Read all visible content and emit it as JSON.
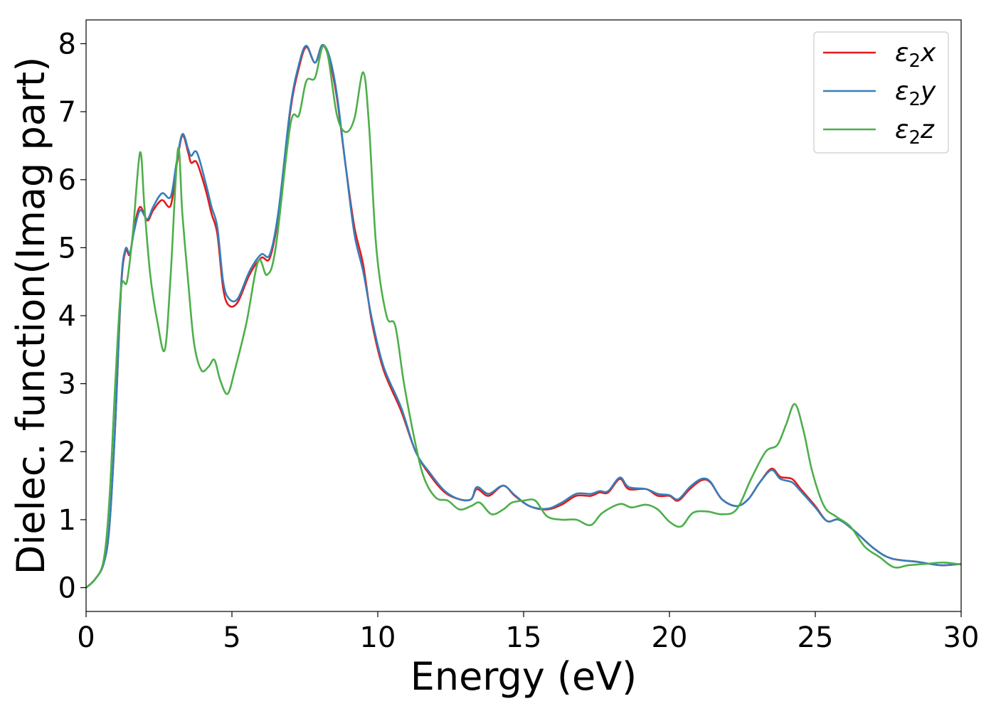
{
  "chart_data": {
    "type": "line",
    "title": "",
    "xlabel": "Energy (eV)",
    "ylabel": "Dielec. function(Imag part)",
    "xlim": [
      0,
      30
    ],
    "ylim": [
      -0.35,
      8.35
    ],
    "xticks": [
      0,
      5,
      10,
      15,
      20,
      25,
      30
    ],
    "yticks": [
      0,
      1,
      2,
      3,
      4,
      5,
      6,
      7,
      8
    ],
    "grid": false,
    "legend_position": "top-right",
    "series": [
      {
        "name": "ε₂x",
        "legend_base": "ε",
        "legend_sub": "2",
        "legend_var": "x",
        "color": "#e41a1c",
        "points": [
          [
            0,
            0
          ],
          [
            0.3,
            0.12
          ],
          [
            0.6,
            0.35
          ],
          [
            0.8,
            0.9
          ],
          [
            1.0,
            2.4
          ],
          [
            1.2,
            4.4
          ],
          [
            1.35,
            4.95
          ],
          [
            1.5,
            4.9
          ],
          [
            1.65,
            5.3
          ],
          [
            1.85,
            5.6
          ],
          [
            2.1,
            5.4
          ],
          [
            2.3,
            5.55
          ],
          [
            2.6,
            5.7
          ],
          [
            2.9,
            5.62
          ],
          [
            3.1,
            6.2
          ],
          [
            3.3,
            6.65
          ],
          [
            3.5,
            6.4
          ],
          [
            3.6,
            6.25
          ],
          [
            3.8,
            6.25
          ],
          [
            4.1,
            5.85
          ],
          [
            4.3,
            5.5
          ],
          [
            4.5,
            5.2
          ],
          [
            4.7,
            4.4
          ],
          [
            4.9,
            4.15
          ],
          [
            5.2,
            4.2
          ],
          [
            5.6,
            4.6
          ],
          [
            6.0,
            4.85
          ],
          [
            6.3,
            4.85
          ],
          [
            6.6,
            5.5
          ],
          [
            7.0,
            7.0
          ],
          [
            7.3,
            7.65
          ],
          [
            7.55,
            7.95
          ],
          [
            7.85,
            7.72
          ],
          [
            8.1,
            7.98
          ],
          [
            8.35,
            7.75
          ],
          [
            8.6,
            7.2
          ],
          [
            8.9,
            6.2
          ],
          [
            9.2,
            5.3
          ],
          [
            9.5,
            4.75
          ],
          [
            9.8,
            3.9
          ],
          [
            10.2,
            3.2
          ],
          [
            10.8,
            2.6
          ],
          [
            11.3,
            2.0
          ],
          [
            11.8,
            1.65
          ],
          [
            12.3,
            1.4
          ],
          [
            12.8,
            1.3
          ],
          [
            13.2,
            1.3
          ],
          [
            13.4,
            1.45
          ],
          [
            13.8,
            1.35
          ],
          [
            14.3,
            1.5
          ],
          [
            14.7,
            1.35
          ],
          [
            15.2,
            1.2
          ],
          [
            15.8,
            1.15
          ],
          [
            16.3,
            1.22
          ],
          [
            16.8,
            1.35
          ],
          [
            17.3,
            1.35
          ],
          [
            17.6,
            1.4
          ],
          [
            17.9,
            1.4
          ],
          [
            18.3,
            1.6
          ],
          [
            18.6,
            1.45
          ],
          [
            19.2,
            1.45
          ],
          [
            19.6,
            1.35
          ],
          [
            20.0,
            1.35
          ],
          [
            20.3,
            1.28
          ],
          [
            20.7,
            1.45
          ],
          [
            21.1,
            1.58
          ],
          [
            21.4,
            1.55
          ],
          [
            21.8,
            1.3
          ],
          [
            22.3,
            1.2
          ],
          [
            22.7,
            1.3
          ],
          [
            23.1,
            1.55
          ],
          [
            23.5,
            1.75
          ],
          [
            23.8,
            1.63
          ],
          [
            24.2,
            1.6
          ],
          [
            24.5,
            1.45
          ],
          [
            25.0,
            1.2
          ],
          [
            25.4,
            0.98
          ],
          [
            25.8,
            1.0
          ],
          [
            26.3,
            0.85
          ],
          [
            27.0,
            0.58
          ],
          [
            27.6,
            0.43
          ],
          [
            28.5,
            0.38
          ],
          [
            29.3,
            0.33
          ],
          [
            30.0,
            0.35
          ]
        ]
      },
      {
        "name": "ε₂y",
        "legend_base": "ε",
        "legend_sub": "2",
        "legend_var": "y",
        "color": "#377eb8",
        "points": [
          [
            0,
            0
          ],
          [
            0.3,
            0.12
          ],
          [
            0.6,
            0.35
          ],
          [
            0.8,
            0.9
          ],
          [
            1.0,
            2.4
          ],
          [
            1.2,
            4.45
          ],
          [
            1.35,
            4.98
          ],
          [
            1.5,
            4.92
          ],
          [
            1.65,
            5.25
          ],
          [
            1.85,
            5.55
          ],
          [
            2.1,
            5.42
          ],
          [
            2.3,
            5.6
          ],
          [
            2.6,
            5.8
          ],
          [
            2.9,
            5.75
          ],
          [
            3.1,
            6.25
          ],
          [
            3.3,
            6.67
          ],
          [
            3.5,
            6.45
          ],
          [
            3.6,
            6.35
          ],
          [
            3.8,
            6.4
          ],
          [
            4.1,
            5.95
          ],
          [
            4.3,
            5.6
          ],
          [
            4.5,
            5.3
          ],
          [
            4.7,
            4.5
          ],
          [
            4.9,
            4.25
          ],
          [
            5.2,
            4.25
          ],
          [
            5.6,
            4.65
          ],
          [
            6.0,
            4.9
          ],
          [
            6.3,
            4.9
          ],
          [
            6.6,
            5.55
          ],
          [
            7.0,
            7.05
          ],
          [
            7.3,
            7.7
          ],
          [
            7.55,
            7.97
          ],
          [
            7.85,
            7.72
          ],
          [
            8.1,
            7.98
          ],
          [
            8.35,
            7.8
          ],
          [
            8.6,
            7.25
          ],
          [
            8.9,
            6.2
          ],
          [
            9.2,
            5.2
          ],
          [
            9.5,
            4.65
          ],
          [
            9.8,
            3.95
          ],
          [
            10.2,
            3.25
          ],
          [
            10.8,
            2.65
          ],
          [
            11.3,
            2.0
          ],
          [
            11.8,
            1.68
          ],
          [
            12.3,
            1.42
          ],
          [
            12.8,
            1.3
          ],
          [
            13.2,
            1.3
          ],
          [
            13.4,
            1.48
          ],
          [
            13.8,
            1.38
          ],
          [
            14.3,
            1.5
          ],
          [
            14.7,
            1.36
          ],
          [
            15.2,
            1.2
          ],
          [
            15.8,
            1.16
          ],
          [
            16.3,
            1.25
          ],
          [
            16.8,
            1.38
          ],
          [
            17.3,
            1.38
          ],
          [
            17.6,
            1.42
          ],
          [
            17.9,
            1.42
          ],
          [
            18.3,
            1.62
          ],
          [
            18.6,
            1.48
          ],
          [
            19.2,
            1.45
          ],
          [
            19.6,
            1.38
          ],
          [
            20.0,
            1.36
          ],
          [
            20.3,
            1.3
          ],
          [
            20.7,
            1.48
          ],
          [
            21.1,
            1.6
          ],
          [
            21.4,
            1.56
          ],
          [
            21.8,
            1.3
          ],
          [
            22.3,
            1.2
          ],
          [
            22.7,
            1.3
          ],
          [
            23.1,
            1.55
          ],
          [
            23.5,
            1.73
          ],
          [
            23.8,
            1.6
          ],
          [
            24.2,
            1.55
          ],
          [
            24.5,
            1.42
          ],
          [
            25.0,
            1.18
          ],
          [
            25.4,
            0.98
          ],
          [
            25.8,
            1.0
          ],
          [
            26.3,
            0.85
          ],
          [
            27.0,
            0.58
          ],
          [
            27.6,
            0.43
          ],
          [
            28.5,
            0.38
          ],
          [
            29.3,
            0.33
          ],
          [
            30.0,
            0.35
          ]
        ]
      },
      {
        "name": "ε₂z",
        "legend_base": "ε",
        "legend_sub": "2",
        "legend_var": "z",
        "color": "#4daf4a",
        "points": [
          [
            0,
            0
          ],
          [
            0.3,
            0.12
          ],
          [
            0.6,
            0.4
          ],
          [
            0.8,
            1.3
          ],
          [
            1.0,
            3.0
          ],
          [
            1.2,
            4.4
          ],
          [
            1.4,
            4.5
          ],
          [
            1.6,
            5.2
          ],
          [
            1.85,
            6.4
          ],
          [
            2.0,
            5.6
          ],
          [
            2.2,
            4.6
          ],
          [
            2.45,
            3.9
          ],
          [
            2.7,
            3.5
          ],
          [
            2.9,
            4.6
          ],
          [
            3.15,
            6.45
          ],
          [
            3.3,
            5.5
          ],
          [
            3.5,
            4.5
          ],
          [
            3.7,
            3.6
          ],
          [
            3.95,
            3.2
          ],
          [
            4.2,
            3.25
          ],
          [
            4.4,
            3.35
          ],
          [
            4.6,
            3.05
          ],
          [
            4.85,
            2.85
          ],
          [
            5.1,
            3.2
          ],
          [
            5.5,
            3.9
          ],
          [
            5.9,
            4.8
          ],
          [
            6.2,
            4.6
          ],
          [
            6.5,
            5.0
          ],
          [
            7.0,
            6.8
          ],
          [
            7.3,
            6.95
          ],
          [
            7.55,
            7.45
          ],
          [
            7.85,
            7.5
          ],
          [
            8.1,
            7.95
          ],
          [
            8.3,
            7.8
          ],
          [
            8.6,
            6.95
          ],
          [
            8.9,
            6.7
          ],
          [
            9.2,
            6.9
          ],
          [
            9.5,
            7.58
          ],
          [
            9.7,
            6.8
          ],
          [
            9.95,
            5.0
          ],
          [
            10.3,
            4.0
          ],
          [
            10.6,
            3.85
          ],
          [
            10.9,
            3.0
          ],
          [
            11.3,
            2.1
          ],
          [
            11.6,
            1.6
          ],
          [
            12.0,
            1.32
          ],
          [
            12.4,
            1.28
          ],
          [
            12.8,
            1.15
          ],
          [
            13.2,
            1.2
          ],
          [
            13.5,
            1.25
          ],
          [
            13.9,
            1.08
          ],
          [
            14.3,
            1.15
          ],
          [
            14.6,
            1.25
          ],
          [
            15.0,
            1.28
          ],
          [
            15.4,
            1.28
          ],
          [
            15.8,
            1.05
          ],
          [
            16.3,
            1.0
          ],
          [
            16.8,
            1.0
          ],
          [
            17.3,
            0.92
          ],
          [
            17.7,
            1.1
          ],
          [
            18.3,
            1.23
          ],
          [
            18.7,
            1.18
          ],
          [
            19.2,
            1.22
          ],
          [
            19.6,
            1.15
          ],
          [
            20.0,
            0.97
          ],
          [
            20.4,
            0.9
          ],
          [
            20.8,
            1.1
          ],
          [
            21.3,
            1.12
          ],
          [
            21.8,
            1.08
          ],
          [
            22.3,
            1.15
          ],
          [
            22.8,
            1.6
          ],
          [
            23.3,
            2.0
          ],
          [
            23.7,
            2.1
          ],
          [
            24.0,
            2.4
          ],
          [
            24.3,
            2.7
          ],
          [
            24.6,
            2.3
          ],
          [
            24.9,
            1.7
          ],
          [
            25.3,
            1.2
          ],
          [
            25.7,
            1.05
          ],
          [
            26.2,
            0.9
          ],
          [
            26.7,
            0.6
          ],
          [
            27.2,
            0.45
          ],
          [
            27.7,
            0.3
          ],
          [
            28.2,
            0.33
          ],
          [
            28.8,
            0.35
          ],
          [
            29.4,
            0.37
          ],
          [
            30.0,
            0.34
          ]
        ]
      }
    ]
  }
}
